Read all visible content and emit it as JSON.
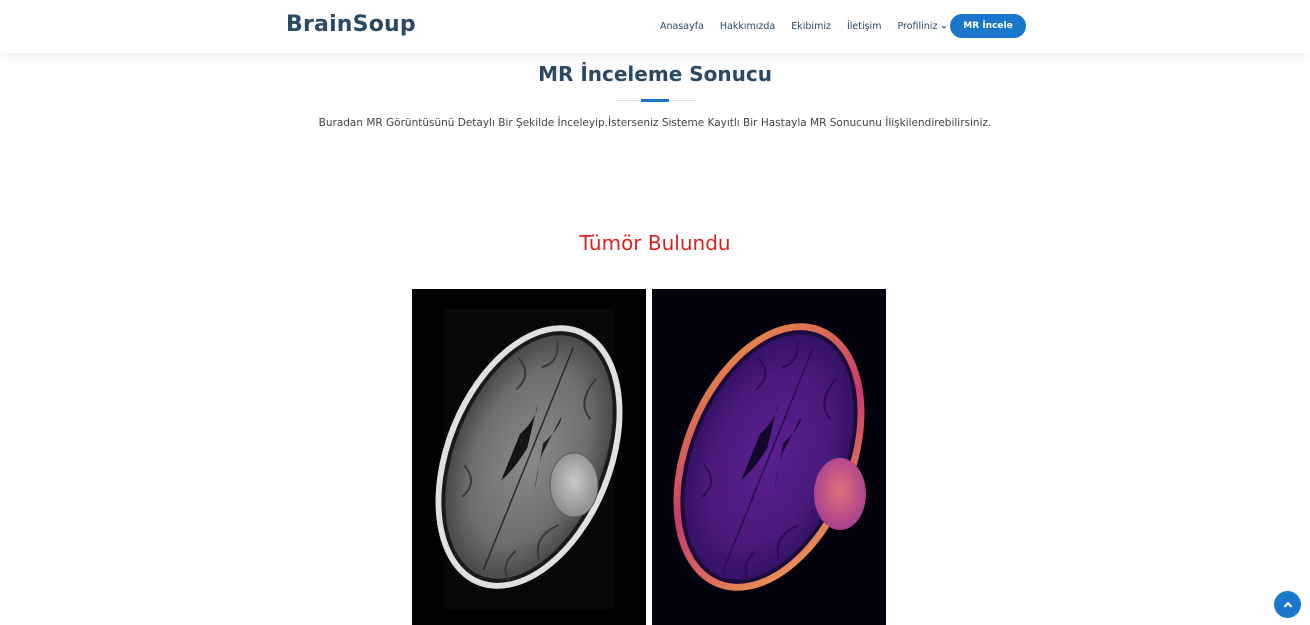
{
  "brand": {
    "name": "BrainSoup"
  },
  "nav": {
    "items": [
      {
        "label": "Anasayfa"
      },
      {
        "label": "Hakkımızda"
      },
      {
        "label": "Ekibimiz"
      },
      {
        "label": "İletişim"
      },
      {
        "label": "Profiliniz"
      }
    ],
    "cta_label": "MR İncele"
  },
  "page": {
    "title": "MR İnceleme Sonucu",
    "description": "Buradan MR Görüntüsünü Detaylı Bir Şekilde İnceleyip.İsterseniz Sisteme Kayıtlı Bir Hastayla MR Sonucunu İlişkilendirebilirsiniz.",
    "result_text": "Tümör Bulundu"
  },
  "images": [
    {
      "kind": "mri-original-grayscale"
    },
    {
      "kind": "mri-heatmap-colored"
    }
  ],
  "colors": {
    "primary": "#1977cc",
    "heading": "#2c4964",
    "result": "#e02020"
  },
  "icons": {
    "profile_dropdown": "chevron-down-icon",
    "scroll_top": "chevron-up-icon"
  }
}
